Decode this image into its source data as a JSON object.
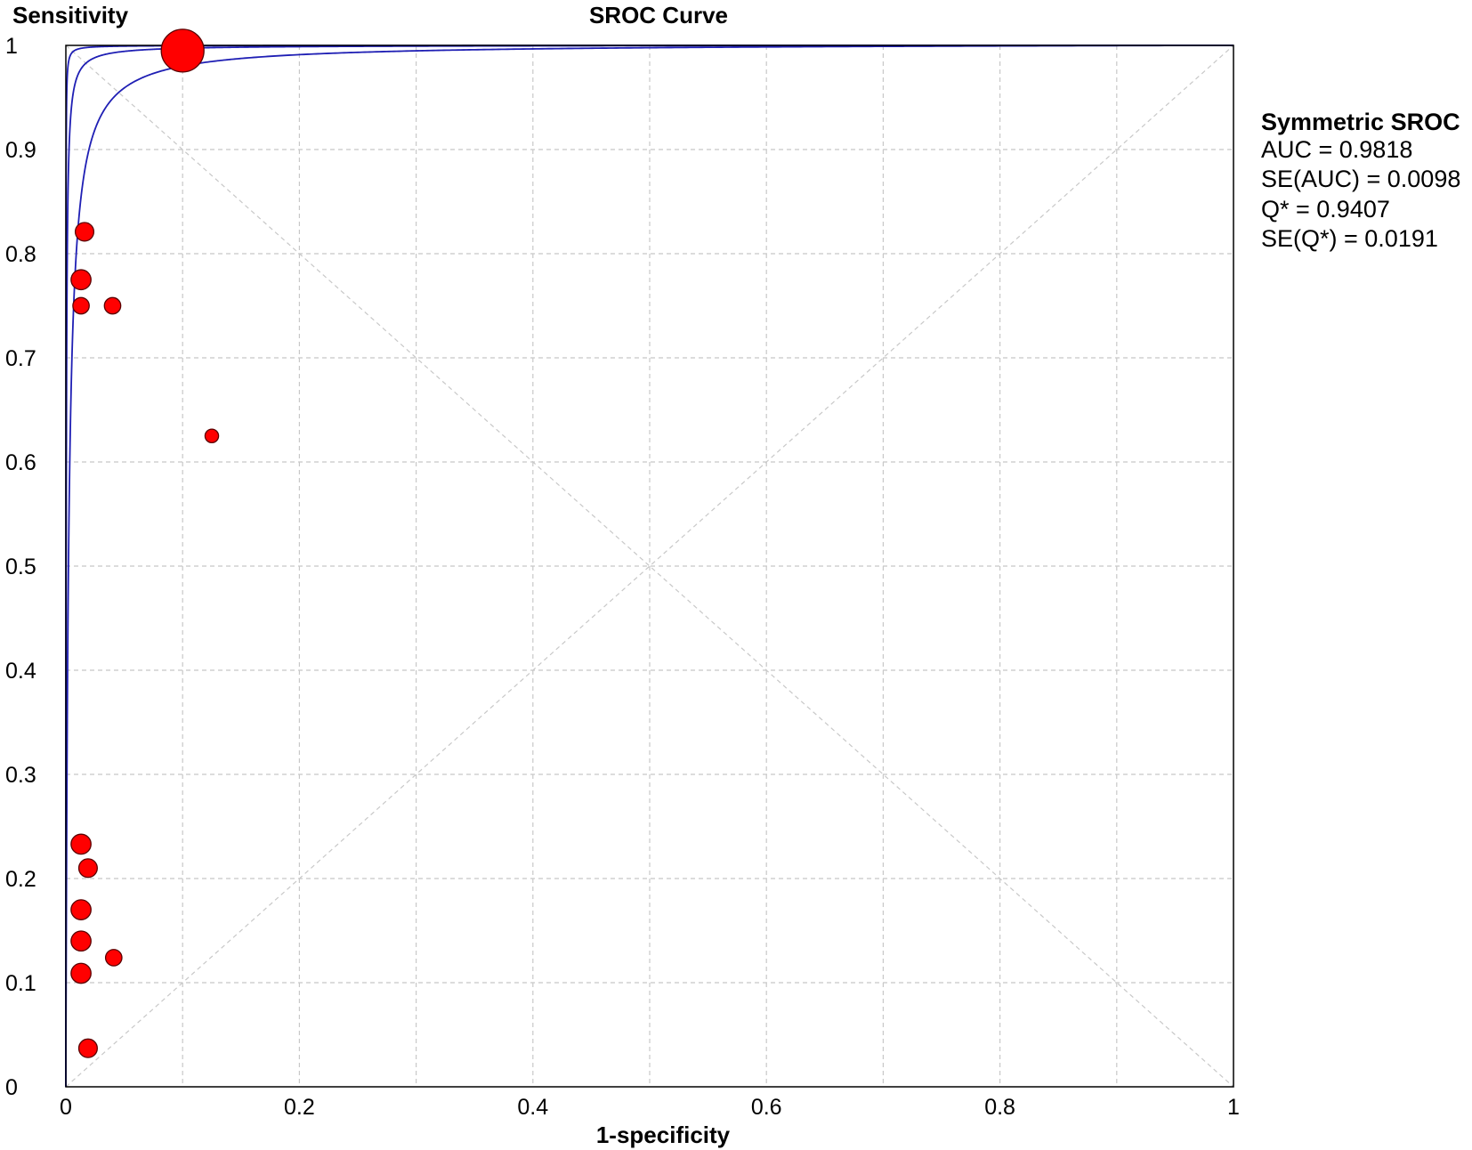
{
  "chart_data": {
    "type": "scatter",
    "title": "SROC Curve",
    "xlabel": "1-specificity",
    "ylabel": "Sensitivity",
    "xlim": [
      0,
      1
    ],
    "ylim": [
      0,
      1
    ],
    "x_ticks": [
      "0",
      "0.2",
      "0.4",
      "0.6",
      "0.8",
      "1"
    ],
    "y_ticks": [
      "0",
      "0.1",
      "0.2",
      "0.3",
      "0.4",
      "0.5",
      "0.6",
      "0.7",
      "0.8",
      "0.9",
      "1"
    ],
    "grid": true,
    "reference_diagonals": true,
    "legend_position": "right",
    "annotation": {
      "heading": "Symmetric SROC",
      "lines": [
        "AUC = 0.9818",
        "SE(AUC) = 0.0098",
        "Q* = 0.9407",
        "SE(Q*) = 0.0191"
      ]
    },
    "curves": [
      {
        "kind": "upper-ci",
        "log_dor": 10.2
      },
      {
        "kind": "sroc",
        "log_dor": 8.1
      },
      {
        "kind": "lower-ci",
        "log_dor": 6.1
      }
    ],
    "points": [
      {
        "x": 0.1,
        "y": 0.995,
        "weight": 3.0
      },
      {
        "x": 0.016,
        "y": 0.821,
        "weight": 1.3
      },
      {
        "x": 0.013,
        "y": 0.775,
        "weight": 1.4
      },
      {
        "x": 0.013,
        "y": 0.75,
        "weight": 1.15
      },
      {
        "x": 0.04,
        "y": 0.75,
        "weight": 1.15
      },
      {
        "x": 0.125,
        "y": 0.625,
        "weight": 0.95
      },
      {
        "x": 0.013,
        "y": 0.233,
        "weight": 1.4
      },
      {
        "x": 0.019,
        "y": 0.21,
        "weight": 1.3
      },
      {
        "x": 0.013,
        "y": 0.17,
        "weight": 1.4
      },
      {
        "x": 0.013,
        "y": 0.14,
        "weight": 1.4
      },
      {
        "x": 0.041,
        "y": 0.124,
        "weight": 1.15
      },
      {
        "x": 0.013,
        "y": 0.109,
        "weight": 1.4
      },
      {
        "x": 0.019,
        "y": 0.037,
        "weight": 1.3
      }
    ],
    "colors": {
      "curve": "#1f1fb4",
      "point_fill": "#ff0000",
      "point_stroke": "#5a0000",
      "grid": "#c8c8c8",
      "axis": "#000000"
    }
  }
}
